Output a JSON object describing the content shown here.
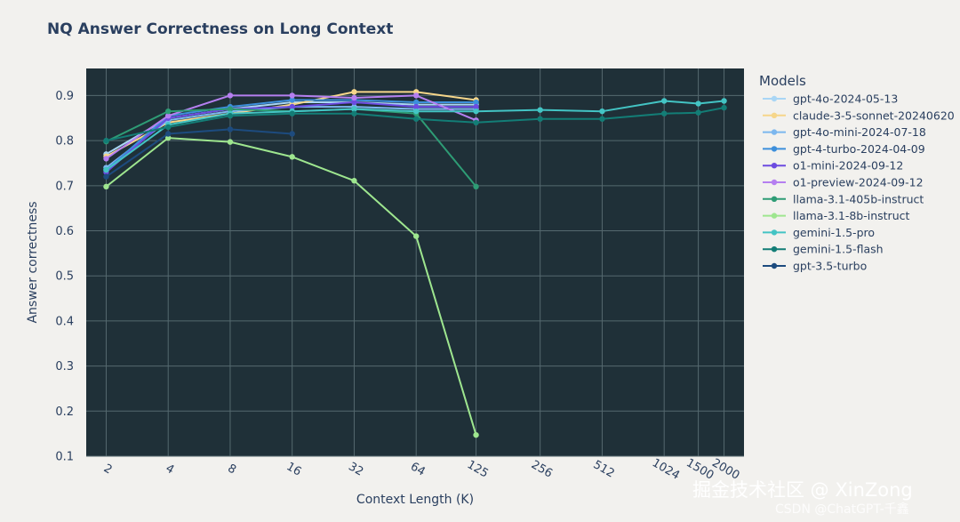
{
  "chart_data": {
    "type": "line",
    "title": "NQ Answer Correctness on Long Context",
    "xlabel": "Context Length (K)",
    "ylabel": "Answer correctness",
    "x": [
      "2",
      "4",
      "8",
      "16",
      "32",
      "64",
      "125",
      "256",
      "512",
      "1024",
      "1500",
      "2000"
    ],
    "ylim": [
      0.1,
      0.96
    ],
    "yticks": [
      0.1,
      0.2,
      0.3,
      0.4,
      0.5,
      0.6,
      0.7,
      0.8,
      0.9
    ],
    "grid": true,
    "legend_title": "Models",
    "legend_position": "right",
    "plot_background": "#1f3038",
    "grid_color": "#55696f",
    "series": [
      {
        "name": "gpt-4o-2024-05-13",
        "color": "#a9d6f5",
        "values": [
          0.77,
          0.85,
          0.87,
          0.885,
          0.885,
          0.88,
          0.88,
          null,
          null,
          null,
          null,
          null
        ]
      },
      {
        "name": "claude-3-5-sonnet-20240620",
        "color": "#f6d68a",
        "values": [
          0.765,
          0.84,
          0.86,
          0.88,
          0.908,
          0.908,
          0.89,
          null,
          null,
          null,
          null,
          null
        ]
      },
      {
        "name": "gpt-4o-mini-2024-07-18",
        "color": "#7cb7ee",
        "values": [
          0.74,
          0.845,
          0.865,
          0.875,
          0.875,
          0.87,
          0.87,
          null,
          null,
          null,
          null,
          null
        ]
      },
      {
        "name": "gpt-4-turbo-2024-04-09",
        "color": "#3d8fdb",
        "values": [
          0.735,
          0.855,
          0.875,
          0.89,
          0.89,
          0.885,
          0.885,
          null,
          null,
          null,
          null,
          null
        ]
      },
      {
        "name": "o1-mini-2024-09-12",
        "color": "#6c4be0",
        "values": [
          0.73,
          0.85,
          0.87,
          0.875,
          0.885,
          0.875,
          0.875,
          null,
          null,
          null,
          null,
          null
        ]
      },
      {
        "name": "o1-preview-2024-09-12",
        "color": "#b57ff0",
        "values": [
          0.76,
          0.855,
          0.9,
          0.9,
          0.895,
          0.9,
          0.845,
          null,
          null,
          null,
          null,
          null
        ]
      },
      {
        "name": "llama-3.1-405b-instruct",
        "color": "#2e9c75",
        "values": [
          0.798,
          0.865,
          0.87,
          0.865,
          0.87,
          0.86,
          0.698,
          null,
          null,
          null,
          null,
          null
        ]
      },
      {
        "name": "llama-3.1-8b-instruct",
        "color": "#9ee68f",
        "values": [
          0.698,
          0.806,
          0.797,
          0.764,
          0.711,
          0.588,
          0.147,
          null,
          null,
          null,
          null,
          null
        ]
      },
      {
        "name": "gemini-1.5-pro",
        "color": "#43c4c4",
        "values": [
          0.735,
          0.835,
          0.86,
          0.865,
          0.87,
          0.865,
          0.865,
          0.868,
          0.865,
          0.888,
          0.882,
          0.888
        ]
      },
      {
        "name": "gemini-1.5-flash",
        "color": "#137d76",
        "values": [
          0.8,
          0.83,
          0.855,
          0.86,
          0.86,
          0.848,
          0.84,
          0.848,
          0.848,
          0.86,
          0.862,
          0.873
        ]
      },
      {
        "name": "gpt-3.5-turbo",
        "color": "#1d4b7e",
        "values": [
          0.72,
          0.815,
          0.825,
          0.815,
          null,
          null,
          null,
          null,
          null,
          null,
          null,
          null
        ]
      }
    ]
  },
  "watermark": {
    "main": "掘金技术社区 @ XinZong",
    "sub": "CSDN @ChatGPT-千鑫"
  }
}
